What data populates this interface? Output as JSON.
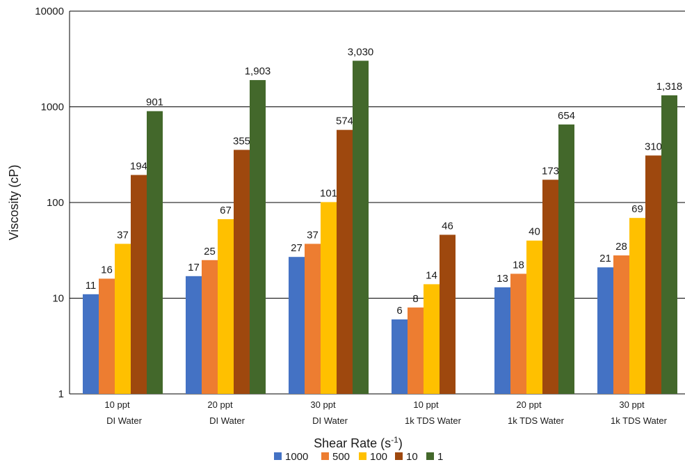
{
  "chart_data": {
    "type": "bar",
    "title": "",
    "xlabel": "Shear Rate (s",
    "xlabel_sup": "-1",
    "xlabel_suffix": ")",
    "ylabel": "Viscosity (cP)",
    "yscale": "log",
    "ylim": [
      1,
      10000
    ],
    "yticks": [
      "1",
      "10",
      "100",
      "1000",
      "10000"
    ],
    "grid": true,
    "legend_position": "bottom",
    "categories": [
      [
        "10  ppt",
        "DI Water"
      ],
      [
        "20 ppt",
        "DI Water"
      ],
      [
        "30 ppt",
        "DI Water"
      ],
      [
        "10  ppt",
        "1k TDS Water"
      ],
      [
        "20 ppt",
        "1k TDS Water"
      ],
      [
        "30 ppt",
        "1k TDS Water"
      ]
    ],
    "series": [
      {
        "name": "1000",
        "color": "#4472C4",
        "values": [
          11,
          17,
          27,
          6,
          13,
          21
        ],
        "labels": [
          "11",
          "17",
          "27",
          "6",
          "13",
          "21"
        ]
      },
      {
        "name": "500",
        "color": "#ED7D31",
        "values": [
          16,
          25,
          37,
          8,
          18,
          28
        ],
        "labels": [
          "16",
          "25",
          "37",
          "8",
          "18",
          "28"
        ]
      },
      {
        "name": "100",
        "color": "#FFC000",
        "values": [
          37,
          67,
          101,
          14,
          40,
          69
        ],
        "labels": [
          "37",
          "67",
          "101",
          "14",
          "40",
          "69"
        ]
      },
      {
        "name": "10",
        "color": "#9E480E",
        "values": [
          194,
          355,
          574,
          46,
          173,
          310
        ],
        "labels": [
          "194",
          "355",
          "574",
          "46",
          "173",
          "310"
        ]
      },
      {
        "name": "1",
        "color": "#43682B",
        "values": [
          901,
          1903,
          3030,
          null,
          654,
          1318
        ],
        "labels": [
          "901",
          "1,903",
          "3,030",
          "",
          "654",
          "1,318"
        ]
      }
    ]
  }
}
